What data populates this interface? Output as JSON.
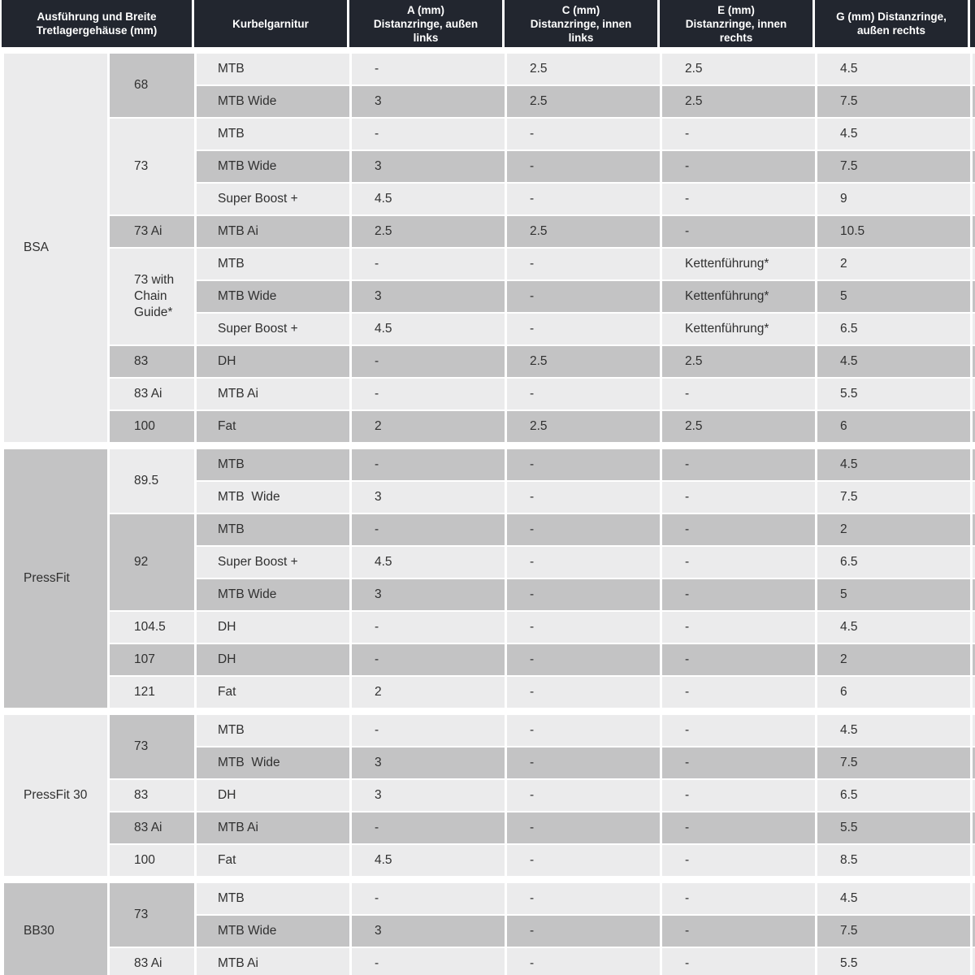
{
  "colors": {
    "header_bg": "#22262f",
    "header_text": "#ffffff",
    "row_light": "#ebebec",
    "row_dark": "#c3c3c4",
    "body_text": "#303030",
    "background": "#ffffff"
  },
  "header": {
    "cols": [
      {
        "label": "Ausführung und Breite\nTretlagergehäuse (mm)"
      },
      {
        "label": "Kurbelgarnitur"
      },
      {
        "label": "A (mm)\nDistanzringe, außen\nlinks"
      },
      {
        "label": "C (mm)\nDistanzringe, innen\nlinks"
      },
      {
        "label": "E (mm)\nDistanzringe, innen\nrechts"
      },
      {
        "label": "G (mm) Distanzringe,\naußen rechts"
      }
    ]
  },
  "sections": [
    {
      "type": "BSA",
      "shade": "light",
      "first_row_shade": "light",
      "groups": [
        {
          "width": "68",
          "shade": "dark",
          "rows": [
            {
              "crank": "MTB",
              "a": "-",
              "c": "2.5",
              "e": "2.5",
              "g": "4.5"
            },
            {
              "crank": "MTB Wide",
              "a": "3",
              "c": "2.5",
              "e": "2.5",
              "g": "7.5"
            }
          ]
        },
        {
          "width": "73",
          "shade": "light",
          "rows": [
            {
              "crank": "MTB",
              "a": "-",
              "c": "-",
              "e": "-",
              "g": "4.5"
            },
            {
              "crank": "MTB Wide",
              "a": "3",
              "c": "-",
              "e": "-",
              "g": "7.5"
            },
            {
              "crank": "Super Boost +",
              "a": "4.5",
              "c": "-",
              "e": "-",
              "g": "9"
            }
          ]
        },
        {
          "width": "73 Ai",
          "shade": "dark",
          "rows": [
            {
              "crank": "MTB Ai",
              "a": "2.5",
              "c": "2.5",
              "e": "-",
              "g": "10.5"
            }
          ]
        },
        {
          "width": "73 with Chain Guide*",
          "shade": "light",
          "rows": [
            {
              "crank": "MTB",
              "a": "-",
              "c": "-",
              "e": "Kettenführung*",
              "g": "2"
            },
            {
              "crank": "MTB Wide",
              "a": "3",
              "c": "-",
              "e": "Kettenführung*",
              "g": "5"
            },
            {
              "crank": "Super Boost +",
              "a": "4.5",
              "c": "-",
              "e": "Kettenführung*",
              "g": "6.5"
            }
          ]
        },
        {
          "width": "83",
          "shade": "dark",
          "rows": [
            {
              "crank": "DH",
              "a": "-",
              "c": "2.5",
              "e": "2.5",
              "g": "4.5"
            }
          ]
        },
        {
          "width": "83 Ai",
          "shade": "light",
          "rows": [
            {
              "crank": "MTB Ai",
              "a": "-",
              "c": "-",
              "e": "-",
              "g": "5.5"
            }
          ]
        },
        {
          "width": "100",
          "shade": "dark",
          "rows": [
            {
              "crank": "Fat",
              "a": "2",
              "c": "2.5",
              "e": "2.5",
              "g": "6"
            }
          ]
        }
      ]
    },
    {
      "type": "PressFit",
      "shade": "dark",
      "first_row_shade": "dark",
      "groups": [
        {
          "width": "89.5",
          "shade": "light",
          "rows": [
            {
              "crank": "MTB",
              "a": "-",
              "c": "-",
              "e": "-",
              "g": "4.5"
            },
            {
              "crank": "MTB  Wide",
              "a": "3",
              "c": "-",
              "e": "-",
              "g": "7.5"
            }
          ]
        },
        {
          "width": "92",
          "shade": "dark",
          "rows": [
            {
              "crank": "MTB",
              "a": "-",
              "c": "-",
              "e": "-",
              "g": "2"
            },
            {
              "crank": "Super Boost +",
              "a": "4.5",
              "c": "-",
              "e": "-",
              "g": "6.5"
            },
            {
              "crank": "MTB Wide",
              "a": "3",
              "c": "-",
              "e": "-",
              "g": "5"
            }
          ]
        },
        {
          "width": "104.5",
          "shade": "light",
          "rows": [
            {
              "crank": "DH",
              "a": "-",
              "c": "-",
              "e": "-",
              "g": "4.5"
            }
          ]
        },
        {
          "width": "107",
          "shade": "dark",
          "rows": [
            {
              "crank": "DH",
              "a": "-",
              "c": "-",
              "e": "-",
              "g": "2"
            }
          ]
        },
        {
          "width": "121",
          "shade": "light",
          "rows": [
            {
              "crank": "Fat",
              "a": "2",
              "c": "-",
              "e": "-",
              "g": "6"
            }
          ]
        }
      ]
    },
    {
      "type": "PressFit 30",
      "shade": "light",
      "first_row_shade": "light",
      "groups": [
        {
          "width": "73",
          "shade": "dark",
          "rows": [
            {
              "crank": "MTB",
              "a": "-",
              "c": "-",
              "e": "-",
              "g": "4.5"
            },
            {
              "crank": "MTB  Wide",
              "a": "3",
              "c": "-",
              "e": "-",
              "g": "7.5"
            }
          ]
        },
        {
          "width": "83",
          "shade": "light",
          "rows": [
            {
              "crank": "DH",
              "a": "3",
              "c": "-",
              "e": "-",
              "g": "6.5"
            }
          ]
        },
        {
          "width": "83 Ai",
          "shade": "dark",
          "rows": [
            {
              "crank": "MTB Ai",
              "a": "-",
              "c": "-",
              "e": "-",
              "g": "5.5"
            }
          ]
        },
        {
          "width": "100",
          "shade": "light",
          "rows": [
            {
              "crank": "Fat",
              "a": "4.5",
              "c": "-",
              "e": "-",
              "g": "8.5"
            }
          ]
        }
      ]
    },
    {
      "type": "BB30",
      "shade": "dark",
      "first_row_shade": "light",
      "groups": [
        {
          "width": "73",
          "shade": "dark",
          "rows": [
            {
              "crank": "MTB",
              "a": "-",
              "c": "-",
              "e": "-",
              "g": "4.5"
            },
            {
              "crank": "MTB Wide",
              "a": "3",
              "c": "-",
              "e": "-",
              "g": "7.5"
            }
          ]
        },
        {
          "width": "83 Ai",
          "shade": "light",
          "rows": [
            {
              "crank": "MTB Ai",
              "a": "-",
              "c": "-",
              "e": "-",
              "g": "5.5"
            }
          ]
        }
      ]
    }
  ]
}
